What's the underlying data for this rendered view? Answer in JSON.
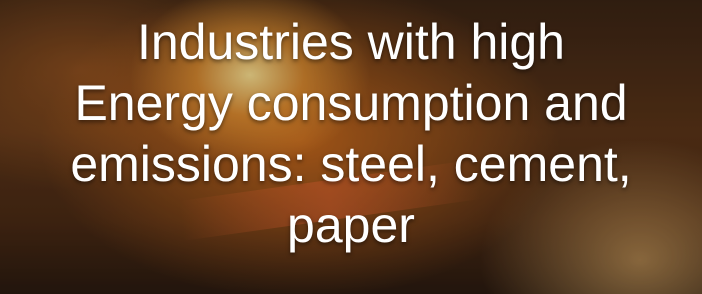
{
  "title": {
    "lines": [
      "Industries with high",
      "Energy consumption and",
      "emissions: steel, cement,",
      "paper"
    ]
  }
}
